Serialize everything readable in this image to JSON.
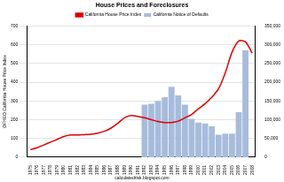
{
  "chart_data": {
    "type": "bar",
    "title": "House Prices and Foreclosures",
    "annotation": "calculatedrisk.blogspot.com",
    "y_label": "OFHEO California House Price Index",
    "categories": [
      "1975",
      "1976",
      "1977",
      "1978",
      "1979",
      "1980",
      "1981",
      "1982",
      "1983",
      "1984",
      "1985",
      "1986",
      "1987",
      "1988",
      "1989",
      "1990",
      "1991",
      "1992",
      "1993",
      "1994",
      "1995",
      "1996",
      "1997",
      "1998",
      "1999",
      "2000",
      "2001",
      "2002",
      "2003",
      "2004",
      "2005",
      "2006",
      "2007",
      "2008"
    ],
    "series": [
      {
        "name": "California Notice of Defaults",
        "type": "bar",
        "color": "#a7bcdc",
        "axis": "y2",
        "values": [
          null,
          null,
          null,
          null,
          null,
          null,
          null,
          null,
          null,
          null,
          null,
          null,
          null,
          null,
          null,
          null,
          null,
          140000,
          142500,
          150000,
          160000,
          187500,
          165000,
          140000,
          102500,
          92500,
          90000,
          82500,
          60000,
          62500,
          62500,
          120000,
          285000,
          null
        ]
      },
      {
        "name": "California House Price Index",
        "type": "line",
        "color": "#e00000",
        "values": [
          40,
          50,
          65,
          80,
          95,
          110,
          118,
          118,
          120,
          122,
          128,
          138,
          155,
          180,
          210,
          222,
          218,
          210,
          200,
          190,
          185,
          185,
          192,
          210,
          228,
          258,
          285,
          320,
          365,
          450,
          560,
          620,
          615,
          555
        ]
      }
    ],
    "ylim": [
      0,
      700
    ],
    "yticks": [
      0,
      100,
      200,
      300,
      400,
      500,
      600,
      700
    ],
    "y2lim": [
      0,
      350000
    ],
    "y2ticks": [
      0,
      50000,
      100000,
      150000,
      200000,
      250000,
      300000,
      350000
    ],
    "grid": true,
    "legend": "top"
  }
}
